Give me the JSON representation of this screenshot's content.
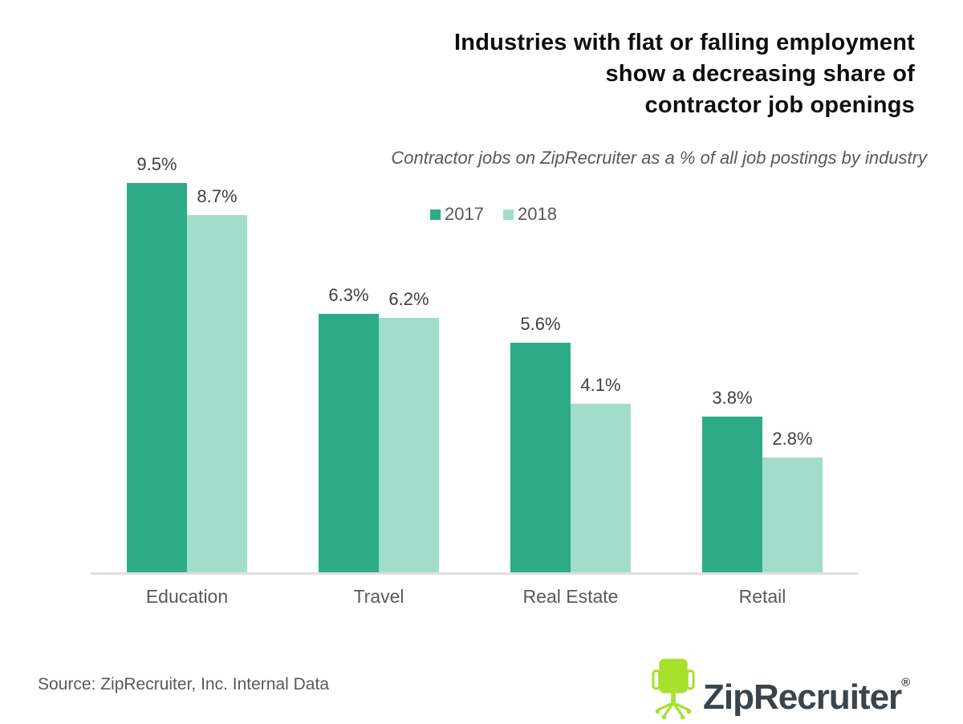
{
  "header": {
    "title_lines": [
      "Industries with flat or falling employment",
      "show a decreasing share of",
      "contractor job openings"
    ]
  },
  "chart_data": {
    "type": "bar",
    "title": "Industries with flat or falling employment show a decreasing share of contractor job openings",
    "subtitle": "Contractor jobs on ZipRecruiter as a % of all job postings by industry",
    "categories": [
      "Education",
      "Travel",
      "Real Estate",
      "Retail"
    ],
    "series": [
      {
        "name": "2017",
        "color": "#2dab87",
        "values": [
          9.5,
          6.3,
          5.6,
          3.8
        ]
      },
      {
        "name": "2018",
        "color": "#a2ddcb",
        "values": [
          8.7,
          6.2,
          4.1,
          2.8
        ]
      }
    ],
    "value_suffix": "%",
    "data_labels": true,
    "ylim": [
      0,
      10
    ],
    "grid": false,
    "legend_position": "top-center",
    "xlabel": "",
    "ylabel": ""
  },
  "footer": {
    "source": "Source: ZipRecruiter, Inc. Internal Data",
    "brand": "ZipRecruiter",
    "registered": "®"
  },
  "colors": {
    "axis_line": "#dedede",
    "chair_green": "#a6e02c",
    "brand_text": "#3b444b",
    "text_gray": "#595959",
    "value_label": "#3f3f3f"
  }
}
